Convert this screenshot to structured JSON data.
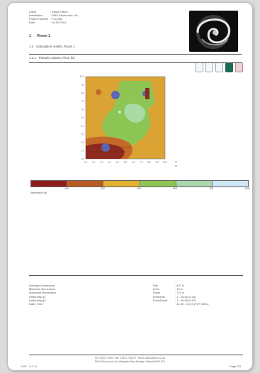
{
  "header": {
    "meta": [
      {
        "key": "Client",
        "value": ": Intake Office"
      },
      {
        "key": "Installation",
        "value": ": DMX Electronics Ltd"
      },
      {
        "key": "Project number",
        "value": ": P-22454"
      },
      {
        "key": "Date",
        "value": ": 04.05.2014"
      }
    ]
  },
  "headings": {
    "h1_num": "1",
    "h1_text": "Room 1",
    "h2_num": "1.2",
    "h2_text": "Calculation results, Room 1",
    "h3_num": "1.2.1",
    "h3_text": "Pseudo colours, Floor (E)"
  },
  "plot": {
    "x_ticks": [
      "0.0",
      "1.0",
      "2.0",
      "3.0",
      "4.0",
      "5.0",
      "6.0",
      "7.0",
      "8.0",
      "9.0",
      "10.0"
    ],
    "y_ticks": [
      "10.0",
      "9.0",
      "8.0",
      "7.0",
      "6.0",
      "5.0",
      "4.0",
      "3.0",
      "2.0",
      "1.0",
      "0.0"
    ],
    "x_unit": "m",
    "y_unit": "m",
    "colors": {
      "dark_red": "#8e2a1f",
      "orange": "#dba234",
      "green": "#8ec655",
      "light_green": "#a8dca4",
      "blue": "#5d66b7",
      "light_blue": "#cde7f2"
    }
  },
  "legend": {
    "colors": [
      "#8b1e1c",
      "#b85c24",
      "#e1b330",
      "#8dc452",
      "#a9d8ae",
      "#cfe6f3"
    ],
    "ticks": [
      "100",
      "200",
      "300",
      "500",
      "750",
      "1000"
    ],
    "title": "Illuminance [lx]"
  },
  "summary": {
    "left_labels": [
      "Average illuminance",
      "Minimum illuminance",
      "Maximum illuminance",
      "Uniformity g1",
      "Uniformity g2",
      "Date, Time"
    ],
    "right_labels": [
      "Eav",
      "Emin",
      "Emax",
      "Emin/Eav",
      "Emin/Emax",
      ""
    ],
    "right_values": [
      ": 427 lx",
      ": 15 lx",
      ": 723 lx",
      ": 1 : 28.36 (0.04)",
      ": 1 : 48.36 (0.02)",
      ": 31.05 - 10:23 (TOT 3601)"
    ]
  },
  "footer": {
    "line1": "Tel: 01922 7549 / Fax: 01922 754379 · Email: sales@dmx.co.uk",
    "line2": "DMX Electronics Ltd, Westgate Way, Aldridge, Walsall WS9 8TX",
    "left": "DMX · 6.0 v9",
    "right": "Page 2/3"
  }
}
